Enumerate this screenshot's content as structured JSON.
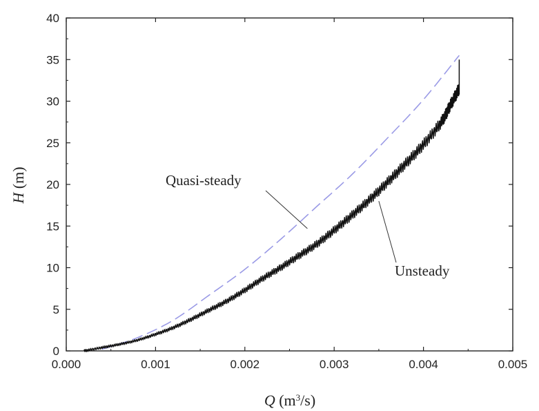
{
  "chart_data": {
    "type": "line",
    "title": "",
    "xlabel": {
      "symbol": "Q",
      "unit_prefix": " (m",
      "unit_sup": "3",
      "unit_suffix": "/s)"
    },
    "ylabel": {
      "symbol": "H",
      "unit": " (m)"
    },
    "xlim": [
      0,
      0.005
    ],
    "ylim": [
      0,
      40
    ],
    "x_ticks": [
      "0.000",
      "0.001",
      "0.002",
      "0.003",
      "0.004",
      "0.005"
    ],
    "y_ticks": [
      "0",
      "5",
      "10",
      "15",
      "20",
      "25",
      "30",
      "35",
      "40"
    ],
    "grid": false,
    "legend": "none",
    "series": [
      {
        "name": "Quasi-steady",
        "style": "dashed",
        "color": "#9a9ae6",
        "x": [
          0.0004,
          0.0008,
          0.0012,
          0.0016,
          0.002,
          0.0024,
          0.0028,
          0.0032,
          0.0036,
          0.004,
          0.0044
        ],
        "y": [
          0.2,
          1.6,
          3.7,
          6.7,
          9.8,
          13.4,
          17.3,
          21.2,
          25.6,
          30.2,
          35.5
        ]
      },
      {
        "name": "Unsteady",
        "style": "solid-oscillating",
        "color": "#111111",
        "x": [
          0.0002,
          0.0004,
          0.0006,
          0.0008,
          0.001,
          0.0012,
          0.0014,
          0.0016,
          0.0018,
          0.002,
          0.0022,
          0.0024,
          0.0026,
          0.0028,
          0.003,
          0.0032,
          0.0034,
          0.0036,
          0.0038,
          0.004,
          0.0042,
          0.0043,
          0.0044,
          0.0044
        ],
        "y": [
          0.0,
          0.4,
          0.8,
          1.3,
          2.0,
          2.8,
          3.8,
          4.9,
          6.0,
          7.3,
          8.7,
          10.0,
          11.4,
          12.8,
          14.5,
          16.3,
          18.2,
          20.3,
          22.5,
          24.8,
          27.5,
          29.5,
          31.5,
          35.0
        ],
        "oscillation_amplitude_m": 0.6
      }
    ],
    "annotations": [
      {
        "text": "Quasi-steady",
        "points_to_series": 0,
        "target": [
          0.0027,
          14.7
        ]
      },
      {
        "text": "Unsteady",
        "points_to_series": 1,
        "target": [
          0.0035,
          18.0
        ]
      }
    ]
  }
}
